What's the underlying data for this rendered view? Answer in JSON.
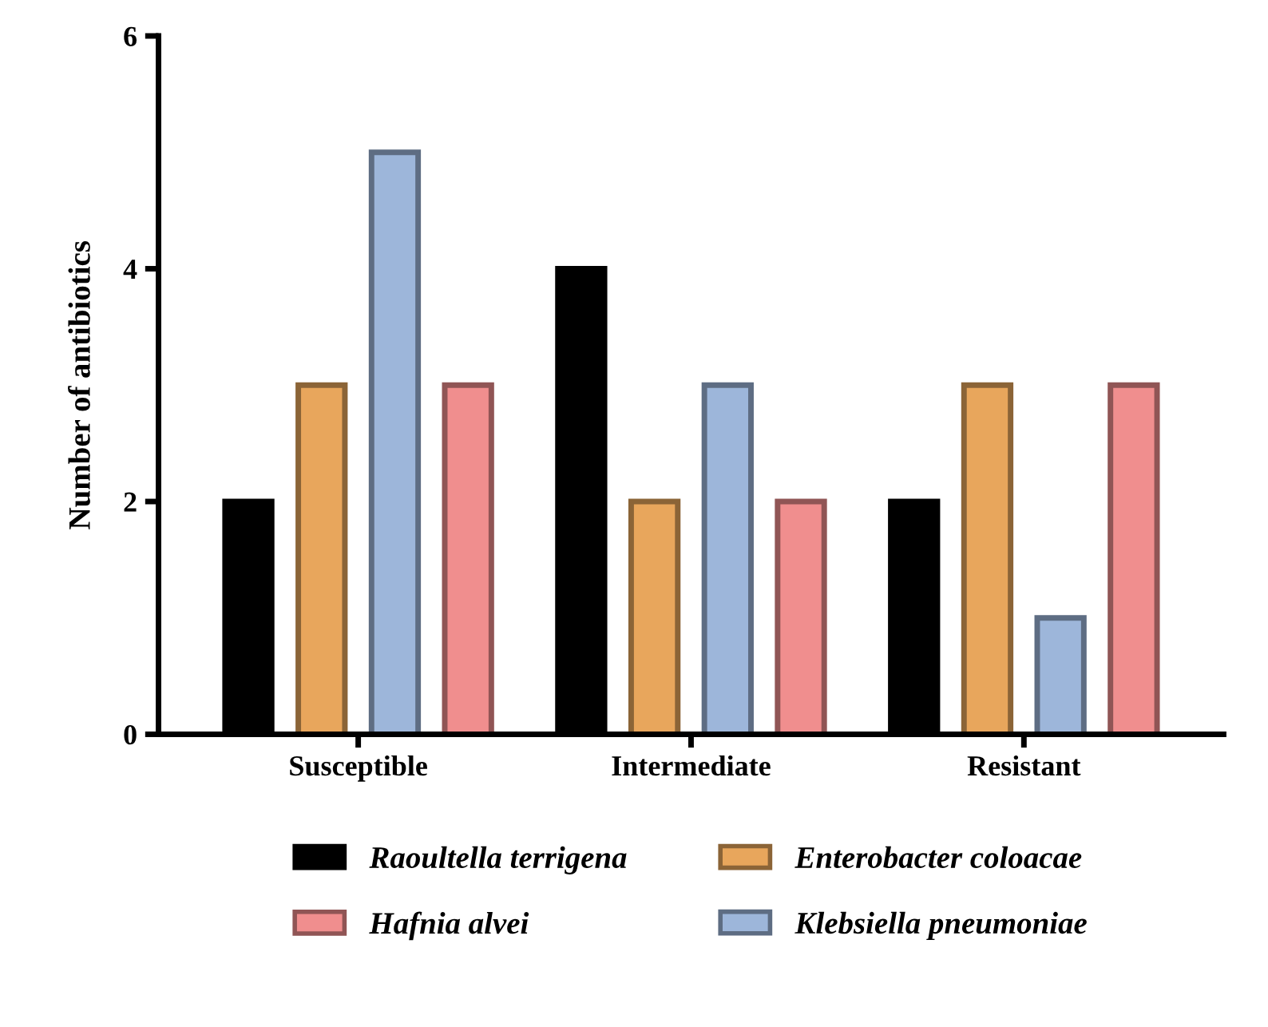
{
  "chart_data": {
    "type": "bar",
    "ylabel": "Number of antibiotics",
    "categories": [
      "Susceptible",
      "Intermediate",
      "Resistant"
    ],
    "series": [
      {
        "name": "Raoultella terrigena",
        "color": "#000000",
        "values": [
          2,
          4,
          2
        ]
      },
      {
        "name": "Enterobacter coloacae",
        "color": "#e8a65c",
        "values": [
          3,
          2,
          3
        ]
      },
      {
        "name": "Klebsiella pneumoniae",
        "color": "#9db6da",
        "values": [
          5,
          3,
          1
        ]
      },
      {
        "name": "Hafnia alvei",
        "color": "#f08e8e",
        "values": [
          3,
          2,
          3
        ]
      }
    ],
    "ylim": [
      0,
      6
    ],
    "yticks": [
      0,
      2,
      4,
      6
    ],
    "grid": false,
    "legend": "bottom"
  }
}
